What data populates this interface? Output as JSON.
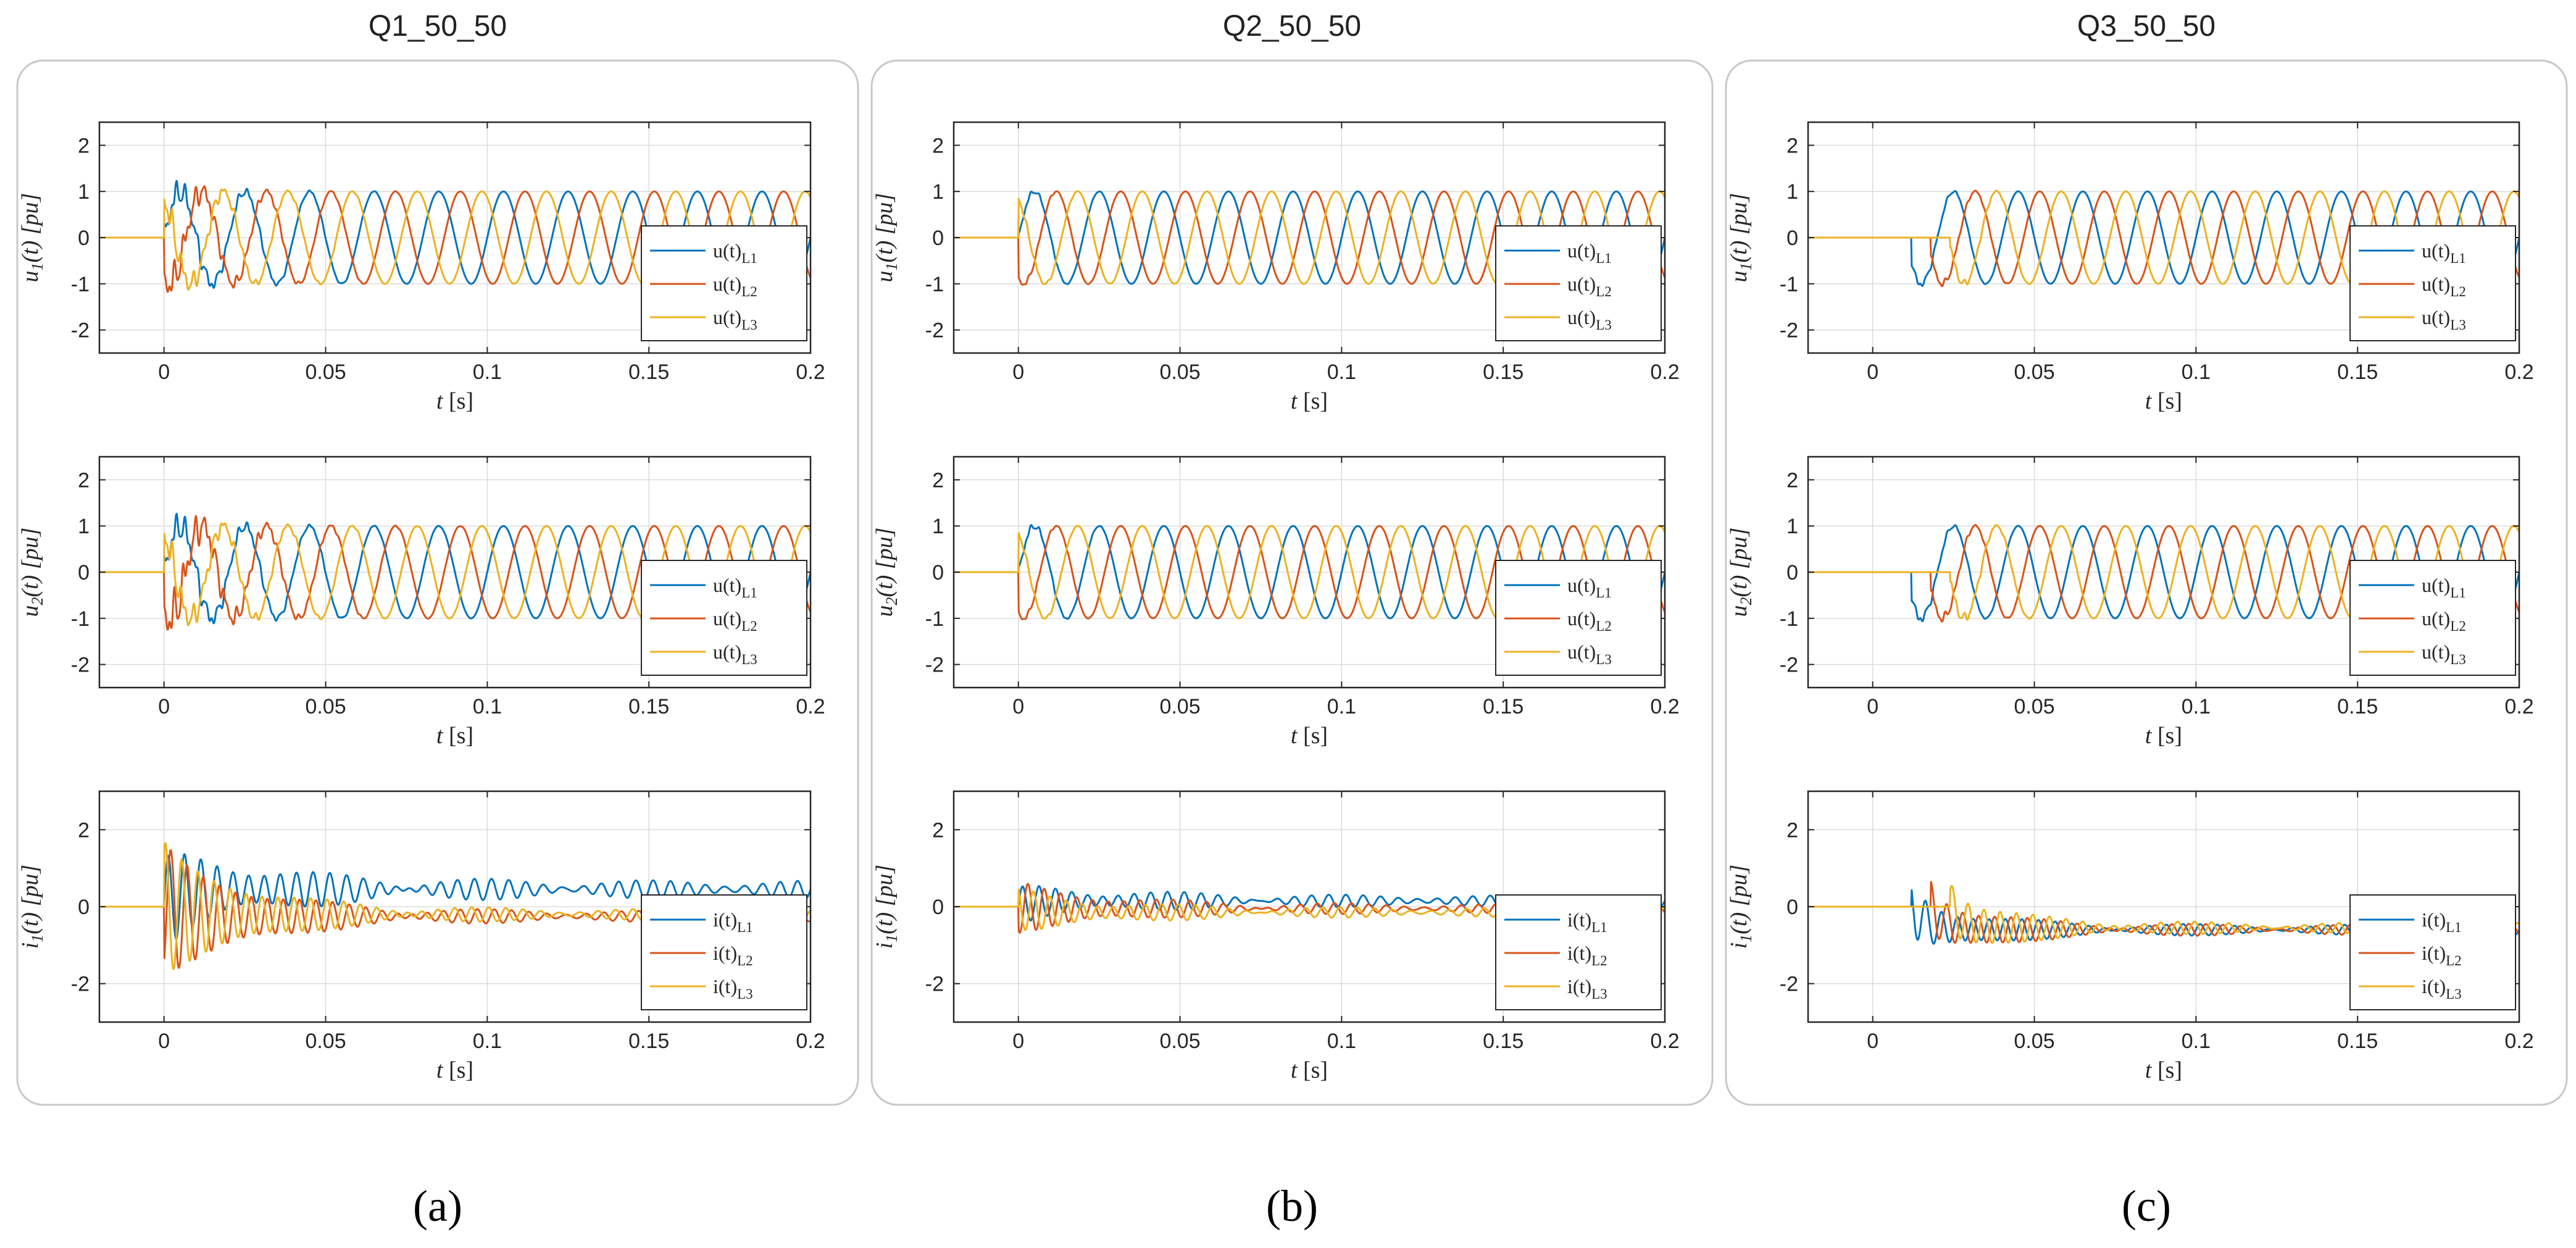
{
  "colors": {
    "L1": "#0072BD",
    "L2": "#D95319",
    "L3": "#EDB120"
  },
  "chart_data": [
    {
      "type": "line",
      "title": "Q1_50_50",
      "caption": "(a)",
      "subplots": [
        {
          "ylabel_var": "u",
          "ylabel_sub": "1",
          "ylabel_rest": "(t) [pu]",
          "xlabel_var": "t",
          "xlabel_rest": " [s]",
          "xlim": [
            -0.02,
            0.2
          ],
          "ylim": [
            -2.5,
            2.5
          ],
          "yticks": [
            -2,
            -1,
            0,
            1,
            2
          ],
          "xticks": [
            0,
            0.05,
            0.1,
            0.15,
            0.2
          ],
          "xtick_labels": [
            "0",
            "0.05",
            "0.1",
            "0.15",
            "0.2"
          ],
          "ytick_labels": [
            "-2",
            "-1",
            "0",
            "1",
            "2"
          ],
          "grid": true,
          "legend_loc": "lower-right",
          "series": [
            {
              "name_base": "u(t)",
              "name_sub": "L1",
              "onset": 0.0,
              "amp": 1.0,
              "phase_deg": 0,
              "dc": 0,
              "transient_amp": 0.45,
              "tau": 0.018
            },
            {
              "name_base": "u(t)",
              "name_sub": "L2",
              "onset": 0.0,
              "amp": 1.0,
              "phase_deg": -120,
              "dc": 0,
              "transient_amp": 0.55,
              "tau": 0.018
            },
            {
              "name_base": "u(t)",
              "name_sub": "L3",
              "onset": 0.0,
              "amp": 1.0,
              "phase_deg": 120,
              "dc": 0,
              "transient_amp": 0.45,
              "tau": 0.018
            }
          ]
        },
        {
          "ylabel_var": "u",
          "ylabel_sub": "2",
          "ylabel_rest": "(t) [pu]",
          "xlabel_var": "t",
          "xlabel_rest": " [s]",
          "xlim": [
            -0.02,
            0.2
          ],
          "ylim": [
            -2.5,
            2.5
          ],
          "yticks": [
            -2,
            -1,
            0,
            1,
            2
          ],
          "xticks": [
            0,
            0.05,
            0.1,
            0.15,
            0.2
          ],
          "xtick_labels": [
            "0",
            "0.05",
            "0.1",
            "0.15",
            "0.2"
          ],
          "ytick_labels": [
            "-2",
            "-1",
            "0",
            "1",
            "2"
          ],
          "grid": true,
          "legend_loc": "lower-right",
          "series": [
            {
              "name_base": "u(t)",
              "name_sub": "L1",
              "onset": 0.0,
              "amp": 1.0,
              "phase_deg": 0,
              "dc": 0,
              "transient_amp": 0.5,
              "tau": 0.02
            },
            {
              "name_base": "u(t)",
              "name_sub": "L2",
              "onset": 0.0,
              "amp": 1.0,
              "phase_deg": -120,
              "dc": 0,
              "transient_amp": 0.75,
              "tau": 0.02
            },
            {
              "name_base": "u(t)",
              "name_sub": "L3",
              "onset": 0.0,
              "amp": 1.0,
              "phase_deg": 120,
              "dc": 0,
              "transient_amp": 0.5,
              "tau": 0.02
            }
          ]
        },
        {
          "ylabel_var": "i",
          "ylabel_sub": "1",
          "ylabel_rest": "(t) [pu]",
          "xlabel_var": "t",
          "xlabel_rest": " [s]",
          "xlim": [
            -0.02,
            0.2
          ],
          "ylim": [
            -3,
            3
          ],
          "yticks": [
            -2,
            0,
            2
          ],
          "xticks": [
            0,
            0.05,
            0.1,
            0.15,
            0.2
          ],
          "xtick_labels": [
            "0",
            "0.05",
            "0.1",
            "0.15",
            "0.2"
          ],
          "ytick_labels": [
            "-2",
            "0",
            "2"
          ],
          "grid": true,
          "legend_loc": "lower-right",
          "series": [
            {
              "name_base": "i(t)",
              "name_sub": "L1",
              "onset": 0.0,
              "amp": 1.1,
              "phase_deg": 0,
              "dc": 0.45,
              "amp_decay_to": 0.12,
              "tau": 0.04,
              "ripple": 0.15
            },
            {
              "name_base": "i(t)",
              "name_sub": "L2",
              "onset": 0.0,
              "amp": 1.6,
              "phase_deg": -60,
              "dc": -0.25,
              "amp_decay_to": 0.05,
              "tau": 0.035,
              "ripple": 0.1
            },
            {
              "name_base": "i(t)",
              "name_sub": "L3",
              "onset": 0.0,
              "amp": 1.6,
              "phase_deg": 60,
              "dc": -0.2,
              "amp_decay_to": 0.05,
              "tau": 0.035,
              "ripple": 0.1
            }
          ]
        }
      ]
    },
    {
      "type": "line",
      "title": "Q2_50_50",
      "caption": "(b)",
      "subplots": [
        {
          "ylabel_var": "u",
          "ylabel_sub": "1",
          "ylabel_rest": "(t) [pu]",
          "xlabel_var": "t",
          "xlabel_rest": " [s]",
          "xlim": [
            -0.02,
            0.2
          ],
          "ylim": [
            -2.5,
            2.5
          ],
          "yticks": [
            -2,
            -1,
            0,
            1,
            2
          ],
          "xticks": [
            0,
            0.05,
            0.1,
            0.15,
            0.2
          ],
          "xtick_labels": [
            "0",
            "0.05",
            "0.1",
            "0.15",
            "0.2"
          ],
          "ytick_labels": [
            "-2",
            "-1",
            "0",
            "1",
            "2"
          ],
          "grid": true,
          "legend_loc": "lower-right",
          "series": [
            {
              "name_base": "u(t)",
              "name_sub": "L1",
              "onset": 0.0,
              "amp": 1.0,
              "phase_deg": 0,
              "dc": 0,
              "transient_amp": 0.1,
              "tau": 0.01
            },
            {
              "name_base": "u(t)",
              "name_sub": "L2",
              "onset": 0.0,
              "amp": 1.0,
              "phase_deg": -120,
              "dc": 0,
              "transient_amp": 0.1,
              "tau": 0.01
            },
            {
              "name_base": "u(t)",
              "name_sub": "L3",
              "onset": 0.0,
              "amp": 1.0,
              "phase_deg": 120,
              "dc": 0,
              "transient_amp": 0.1,
              "tau": 0.01
            }
          ]
        },
        {
          "ylabel_var": "u",
          "ylabel_sub": "2",
          "ylabel_rest": "(t) [pu]",
          "xlabel_var": "t",
          "xlabel_rest": " [s]",
          "xlim": [
            -0.02,
            0.2
          ],
          "ylim": [
            -2.5,
            2.5
          ],
          "yticks": [
            -2,
            -1,
            0,
            1,
            2
          ],
          "xticks": [
            0,
            0.05,
            0.1,
            0.15,
            0.2
          ],
          "xtick_labels": [
            "0",
            "0.05",
            "0.1",
            "0.15",
            "0.2"
          ],
          "ytick_labels": [
            "-2",
            "-1",
            "0",
            "1",
            "2"
          ],
          "grid": true,
          "legend_loc": "lower-right",
          "series": [
            {
              "name_base": "u(t)",
              "name_sub": "L1",
              "onset": 0.0,
              "amp": 1.0,
              "phase_deg": 0,
              "dc": 0,
              "transient_amp": 0.15,
              "tau": 0.01
            },
            {
              "name_base": "u(t)",
              "name_sub": "L2",
              "onset": 0.0,
              "amp": 1.0,
              "phase_deg": -120,
              "dc": 0,
              "transient_amp": 0.1,
              "tau": 0.01
            },
            {
              "name_base": "u(t)",
              "name_sub": "L3",
              "onset": 0.0,
              "amp": 1.0,
              "phase_deg": 120,
              "dc": 0,
              "transient_amp": 0.1,
              "tau": 0.01
            }
          ]
        },
        {
          "ylabel_var": "i",
          "ylabel_sub": "1",
          "ylabel_rest": "(t) [pu]",
          "xlabel_var": "t",
          "xlabel_rest": " [s]",
          "xlim": [
            -0.02,
            0.2
          ],
          "ylim": [
            -3,
            3
          ],
          "yticks": [
            -2,
            0,
            2
          ],
          "xticks": [
            0,
            0.05,
            0.1,
            0.15,
            0.2
          ],
          "xtick_labels": [
            "0",
            "0.05",
            "0.1",
            "0.15",
            "0.2"
          ],
          "ytick_labels": [
            "-2",
            "0",
            "2"
          ],
          "grid": true,
          "legend_loc": "lower-right",
          "series": [
            {
              "name_base": "i(t)",
              "name_sub": "L1",
              "onset": 0.0,
              "amp": 0.4,
              "phase_deg": 0,
              "dc": 0.15,
              "amp_decay_to": 0.05,
              "tau": 0.05,
              "ripple": 0.1
            },
            {
              "name_base": "i(t)",
              "name_sub": "L2",
              "onset": 0.0,
              "amp": 0.6,
              "phase_deg": -120,
              "dc": -0.05,
              "amp_decay_to": 0.05,
              "tau": 0.04,
              "ripple": 0.08
            },
            {
              "name_base": "i(t)",
              "name_sub": "L3",
              "onset": 0.0,
              "amp": 0.5,
              "phase_deg": 120,
              "dc": -0.15,
              "amp_decay_to": 0.05,
              "tau": 0.04,
              "ripple": 0.08
            }
          ]
        }
      ]
    },
    {
      "type": "line",
      "title": "Q3_50_50",
      "caption": "(c)",
      "subplots": [
        {
          "ylabel_var": "u",
          "ylabel_sub": "1",
          "ylabel_rest": "(t) [pu]",
          "xlabel_var": "t",
          "xlabel_rest": " [s]",
          "xlim": [
            -0.02,
            0.2
          ],
          "ylim": [
            -2.5,
            2.5
          ],
          "yticks": [
            -2,
            -1,
            0,
            1,
            2
          ],
          "xticks": [
            0,
            0.05,
            0.1,
            0.15,
            0.2
          ],
          "xtick_labels": [
            "0",
            "0.05",
            "0.1",
            "0.15",
            "0.2"
          ],
          "ytick_labels": [
            "-2",
            "-1",
            "0",
            "1",
            "2"
          ],
          "grid": true,
          "legend_loc": "lower-right",
          "series": [
            {
              "name_base": "u(t)",
              "name_sub": "L1",
              "onset": 0.012,
              "amp": 1.0,
              "phase_deg": 0,
              "dc": 0,
              "transient_amp": 0.15,
              "tau": 0.01
            },
            {
              "name_base": "u(t)",
              "name_sub": "L2",
              "onset": 0.018,
              "amp": 1.0,
              "phase_deg": -120,
              "dc": 0,
              "transient_amp": 0.15,
              "tau": 0.01
            },
            {
              "name_base": "u(t)",
              "name_sub": "L3",
              "onset": 0.024,
              "amp": 1.0,
              "phase_deg": 120,
              "dc": 0,
              "transient_amp": 0.15,
              "tau": 0.01
            }
          ]
        },
        {
          "ylabel_var": "u",
          "ylabel_sub": "2",
          "ylabel_rest": "(t) [pu]",
          "xlabel_var": "t",
          "xlabel_rest": " [s]",
          "xlim": [
            -0.02,
            0.2
          ],
          "ylim": [
            -2.5,
            2.5
          ],
          "yticks": [
            -2,
            -1,
            0,
            1,
            2
          ],
          "xticks": [
            0,
            0.05,
            0.1,
            0.15,
            0.2
          ],
          "xtick_labels": [
            "0",
            "0.05",
            "0.1",
            "0.15",
            "0.2"
          ],
          "ytick_labels": [
            "-2",
            "-1",
            "0",
            "1",
            "2"
          ],
          "grid": true,
          "legend_loc": "lower-right",
          "series": [
            {
              "name_base": "u(t)",
              "name_sub": "L1",
              "onset": 0.012,
              "amp": 1.0,
              "phase_deg": 0,
              "dc": 0,
              "transient_amp": 0.2,
              "tau": 0.01
            },
            {
              "name_base": "u(t)",
              "name_sub": "L2",
              "onset": 0.018,
              "amp": 1.0,
              "phase_deg": -120,
              "dc": 0,
              "transient_amp": 0.2,
              "tau": 0.01
            },
            {
              "name_base": "u(t)",
              "name_sub": "L3",
              "onset": 0.024,
              "amp": 1.0,
              "phase_deg": 120,
              "dc": 0,
              "transient_amp": 0.2,
              "tau": 0.01
            }
          ]
        },
        {
          "ylabel_var": "i",
          "ylabel_sub": "1",
          "ylabel_rest": "(t) [pu]",
          "xlabel_var": "t",
          "xlabel_rest": " [s]",
          "xlim": [
            -0.02,
            0.2
          ],
          "ylim": [
            -3,
            3
          ],
          "yticks": [
            -2,
            0,
            2
          ],
          "xticks": [
            0,
            0.05,
            0.1,
            0.15,
            0.2
          ],
          "xtick_labels": [
            "0",
            "0.05",
            "0.1",
            "0.15",
            "0.2"
          ],
          "ytick_labels": [
            "-2",
            "0",
            "2"
          ],
          "grid": true,
          "legend_loc": "lower-right",
          "series": [
            {
              "name_base": "i(t)",
              "name_sub": "L1",
              "onset": 0.012,
              "amp": 0.7,
              "phase_deg": 0,
              "dc": -0.6,
              "amp_decay_to": 0.08,
              "tau": 0.03,
              "ripple": 0.08
            },
            {
              "name_base": "i(t)",
              "name_sub": "L2",
              "onset": 0.018,
              "amp": 0.7,
              "phase_deg": -120,
              "dc": -0.6,
              "amp_decay_to": 0.08,
              "tau": 0.03,
              "ripple": 0.08
            },
            {
              "name_base": "i(t)",
              "name_sub": "L3",
              "onset": 0.024,
              "amp": 0.7,
              "phase_deg": 120,
              "dc": -0.55,
              "amp_decay_to": 0.08,
              "tau": 0.03,
              "ripple": 0.08
            }
          ]
        }
      ]
    }
  ]
}
